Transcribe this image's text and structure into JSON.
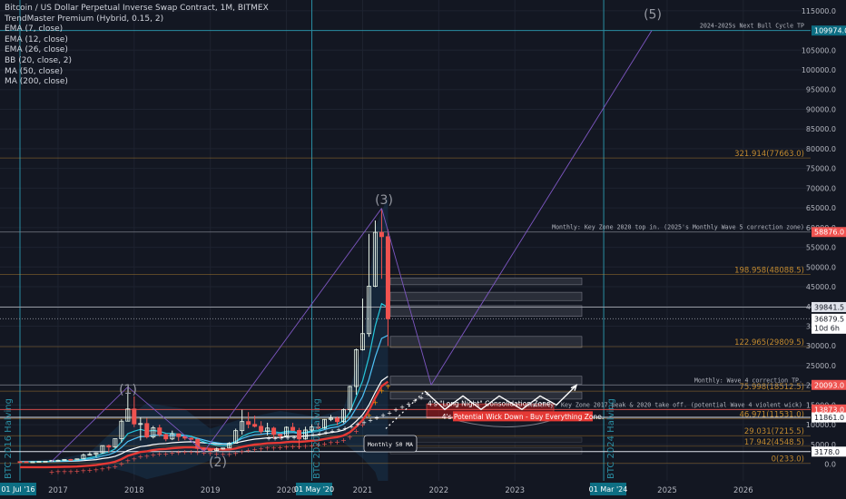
{
  "header": {
    "title": "Bitcoin / US Dollar Perpetual Inverse Swap Contract, 1M, BITMEX",
    "indicators": [
      "TrendMaster Premium (Hybrid, 0.15, 2)",
      "EMA (7, close)",
      "EMA (12, close)",
      "EMA (26, close)",
      "BB (20, close, 2)",
      "MA (50, close)",
      "MA (200, close)"
    ]
  },
  "colors": {
    "background": "#131722",
    "grid": "#1e2330",
    "up": "#26a69a",
    "down": "#ef5350",
    "fib": "#c28a2f",
    "accent": "#0d6e83"
  },
  "chart_data": {
    "type": "candlestick",
    "symbol": "BTCUSD",
    "timeframe": "1M",
    "ylim": [
      -5000,
      115000
    ],
    "y_ticks": [
      0,
      5000,
      10000,
      15000,
      20000,
      25000,
      30000,
      35000,
      40000,
      45000,
      50000,
      55000,
      60000,
      65000,
      70000,
      75000,
      80000,
      85000,
      90000,
      95000,
      100000,
      105000,
      115000
    ],
    "x_ticks": [
      "2017",
      "2018",
      "2019",
      "2020",
      "2021",
      "2022",
      "2023",
      "2025",
      "2026"
    ],
    "date_badges": [
      {
        "label": "01 Jul '16",
        "date": "2016-07-01"
      },
      {
        "label": "01 May '20",
        "date": "2020-05-01"
      },
      {
        "label": "01 Mar '24",
        "date": "2024-03-01"
      }
    ],
    "halving_labels": [
      {
        "label": "BTC 2016 Halving",
        "date": "2016-07-01"
      },
      {
        "label": "BTC 2020 Halving",
        "date": "2020-05-01"
      },
      {
        "label": "BTC 2024 Halving",
        "date": "2024-03-01"
      }
    ],
    "price_badges": [
      {
        "label": "109974.0",
        "value": 109974,
        "color": "#0d6e83"
      },
      {
        "label": "58876.0",
        "value": 58876,
        "color": "#ef5350"
      },
      {
        "label": "39841.5",
        "value": 39841.5,
        "color": "#e0e3eb"
      },
      {
        "label": "36879.5",
        "sub": "10d 6h",
        "value": 36879.5,
        "color": "#ffffff"
      },
      {
        "label": "20093.0",
        "value": 20093,
        "color": "#ef5350"
      },
      {
        "label": "13873.0",
        "value": 13873,
        "color": "#ef5350"
      },
      {
        "label": "11861.0",
        "value": 11861,
        "color": "#ffffff"
      },
      {
        "label": "3178.0",
        "value": 3178,
        "color": "#ffffff"
      }
    ],
    "fib_levels": [
      {
        "label": "321.914(77663.0)",
        "value": 77663
      },
      {
        "label": "198.958(48088.5)",
        "value": 48088.5
      },
      {
        "label": "122.965(29809.5)",
        "value": 29809.5
      },
      {
        "label": "75.998(18512.5)",
        "value": 18512.5
      },
      {
        "label": "46.971(11531.0)",
        "value": 11531
      },
      {
        "label": "29.031(7215.5)",
        "value": 7215.5
      },
      {
        "label": "17.942(4548.5)",
        "value": 4548.5
      },
      {
        "label": "0(233.0)",
        "value": 233
      }
    ],
    "annotations": [
      {
        "text": "2024-2025s Next Bull Cycle TP",
        "value": 109974
      },
      {
        "text": "Monthly: Key Zone 2020 top in. (2025's Monthly Wave 5 correction zone)",
        "value": 58876
      },
      {
        "text": "Monthly: Wave 4 correction TP.",
        "value": 20093
      },
      {
        "text": "Monthly: Key Zone 2017 peak & 2020 take off. (potential Wave 4 violent wick)",
        "value": 13873
      }
    ],
    "callouts": [
      {
        "text": "4's \"Long Night\" Consolidation Zone."
      },
      {
        "text": "4's Potential Wick Down - Buy Everything Zone."
      },
      {
        "text": "Monthly 50 MA"
      }
    ],
    "wave_labels": [
      "(1)",
      "(2)",
      "(3)",
      "(5)"
    ],
    "candles": [
      {
        "date": "2016-07",
        "o": 640,
        "h": 700,
        "l": 600,
        "c": 620
      },
      {
        "date": "2016-08",
        "o": 620,
        "h": 640,
        "l": 540,
        "c": 575
      },
      {
        "date": "2016-09",
        "o": 575,
        "h": 620,
        "l": 570,
        "c": 610
      },
      {
        "date": "2016-10",
        "o": 610,
        "h": 720,
        "l": 600,
        "c": 700
      },
      {
        "date": "2016-11",
        "o": 700,
        "h": 750,
        "l": 690,
        "c": 740
      },
      {
        "date": "2016-12",
        "o": 740,
        "h": 980,
        "l": 730,
        "c": 960
      },
      {
        "date": "2017-01",
        "o": 960,
        "h": 1150,
        "l": 750,
        "c": 970
      },
      {
        "date": "2017-02",
        "o": 970,
        "h": 1200,
        "l": 920,
        "c": 1190
      },
      {
        "date": "2017-03",
        "o": 1190,
        "h": 1350,
        "l": 890,
        "c": 1080
      },
      {
        "date": "2017-04",
        "o": 1080,
        "h": 1350,
        "l": 1060,
        "c": 1350
      },
      {
        "date": "2017-05",
        "o": 1350,
        "h": 2700,
        "l": 1350,
        "c": 2300
      },
      {
        "date": "2017-06",
        "o": 2300,
        "h": 3000,
        "l": 2200,
        "c": 2500
      },
      {
        "date": "2017-07",
        "o": 2500,
        "h": 2950,
        "l": 1800,
        "c": 2870
      },
      {
        "date": "2017-08",
        "o": 2870,
        "h": 4750,
        "l": 2700,
        "c": 4700
      },
      {
        "date": "2017-09",
        "o": 4700,
        "h": 4950,
        "l": 2950,
        "c": 4340
      },
      {
        "date": "2017-10",
        "o": 4340,
        "h": 6450,
        "l": 4100,
        "c": 6450
      },
      {
        "date": "2017-11",
        "o": 6450,
        "h": 11400,
        "l": 5500,
        "c": 10900
      },
      {
        "date": "2017-12",
        "o": 10900,
        "h": 19600,
        "l": 10900,
        "c": 14000
      },
      {
        "date": "2018-01",
        "o": 14000,
        "h": 17200,
        "l": 9400,
        "c": 10200
      },
      {
        "date": "2018-02",
        "o": 10200,
        "h": 11800,
        "l": 6000,
        "c": 10300
      },
      {
        "date": "2018-03",
        "o": 10300,
        "h": 11700,
        "l": 6500,
        "c": 6900
      },
      {
        "date": "2018-04",
        "o": 6900,
        "h": 9700,
        "l": 6500,
        "c": 9200
      },
      {
        "date": "2018-05",
        "o": 9200,
        "h": 10000,
        "l": 7000,
        "c": 7500
      },
      {
        "date": "2018-06",
        "o": 7500,
        "h": 7800,
        "l": 5800,
        "c": 6400
      },
      {
        "date": "2018-07",
        "o": 6400,
        "h": 8500,
        "l": 6100,
        "c": 7700
      },
      {
        "date": "2018-08",
        "o": 7700,
        "h": 7800,
        "l": 5900,
        "c": 7000
      },
      {
        "date": "2018-09",
        "o": 7000,
        "h": 7400,
        "l": 6100,
        "c": 6600
      },
      {
        "date": "2018-10",
        "o": 6600,
        "h": 6800,
        "l": 6200,
        "c": 6300
      },
      {
        "date": "2018-11",
        "o": 6300,
        "h": 6500,
        "l": 3500,
        "c": 4000
      },
      {
        "date": "2018-12",
        "o": 4000,
        "h": 4200,
        "l": 3150,
        "c": 3700
      },
      {
        "date": "2019-01",
        "o": 3700,
        "h": 4100,
        "l": 3400,
        "c": 3450
      },
      {
        "date": "2019-02",
        "o": 3450,
        "h": 4200,
        "l": 3400,
        "c": 3850
      },
      {
        "date": "2019-03",
        "o": 3850,
        "h": 4100,
        "l": 3700,
        "c": 4100
      },
      {
        "date": "2019-04",
        "o": 4100,
        "h": 5600,
        "l": 4050,
        "c": 5300
      },
      {
        "date": "2019-05",
        "o": 5300,
        "h": 9000,
        "l": 5300,
        "c": 8500
      },
      {
        "date": "2019-06",
        "o": 8500,
        "h": 13800,
        "l": 7500,
        "c": 10800
      },
      {
        "date": "2019-07",
        "o": 10800,
        "h": 13200,
        "l": 9100,
        "c": 10100
      },
      {
        "date": "2019-08",
        "o": 10100,
        "h": 12300,
        "l": 9300,
        "c": 9600
      },
      {
        "date": "2019-09",
        "o": 9600,
        "h": 10900,
        "l": 7700,
        "c": 8300
      },
      {
        "date": "2019-10",
        "o": 8300,
        "h": 10500,
        "l": 7300,
        "c": 9150
      },
      {
        "date": "2019-11",
        "o": 9150,
        "h": 9500,
        "l": 6500,
        "c": 7550
      },
      {
        "date": "2019-12",
        "o": 7550,
        "h": 7700,
        "l": 6400,
        "c": 7200
      },
      {
        "date": "2020-01",
        "o": 7200,
        "h": 9600,
        "l": 6900,
        "c": 9350
      },
      {
        "date": "2020-02",
        "o": 9350,
        "h": 10500,
        "l": 8400,
        "c": 8550
      },
      {
        "date": "2020-03",
        "o": 8550,
        "h": 9200,
        "l": 3850,
        "c": 6400
      },
      {
        "date": "2020-04",
        "o": 6400,
        "h": 9500,
        "l": 6200,
        "c": 8650
      },
      {
        "date": "2020-05",
        "o": 8650,
        "h": 10100,
        "l": 8100,
        "c": 9450
      },
      {
        "date": "2020-06",
        "o": 9450,
        "h": 10400,
        "l": 8900,
        "c": 9150
      },
      {
        "date": "2020-07",
        "o": 9150,
        "h": 11450,
        "l": 8950,
        "c": 11350
      },
      {
        "date": "2020-08",
        "o": 11350,
        "h": 12500,
        "l": 10900,
        "c": 11650
      },
      {
        "date": "2020-09",
        "o": 11650,
        "h": 12100,
        "l": 9850,
        "c": 10780
      },
      {
        "date": "2020-10",
        "o": 10780,
        "h": 14100,
        "l": 10400,
        "c": 13800
      },
      {
        "date": "2020-11",
        "o": 13800,
        "h": 19900,
        "l": 13200,
        "c": 19700
      },
      {
        "date": "2020-12",
        "o": 19700,
        "h": 29300,
        "l": 17600,
        "c": 29000
      },
      {
        "date": "2021-01",
        "o": 29000,
        "h": 42000,
        "l": 28800,
        "c": 33100
      },
      {
        "date": "2021-02",
        "o": 33100,
        "h": 58400,
        "l": 32300,
        "c": 45100
      },
      {
        "date": "2021-03",
        "o": 45100,
        "h": 61800,
        "l": 44900,
        "c": 58800
      },
      {
        "date": "2021-04",
        "o": 58800,
        "h": 64900,
        "l": 47000,
        "c": 57700
      },
      {
        "date": "2021-05",
        "o": 57700,
        "h": 59600,
        "l": 30000,
        "c": 36879.5
      }
    ]
  }
}
